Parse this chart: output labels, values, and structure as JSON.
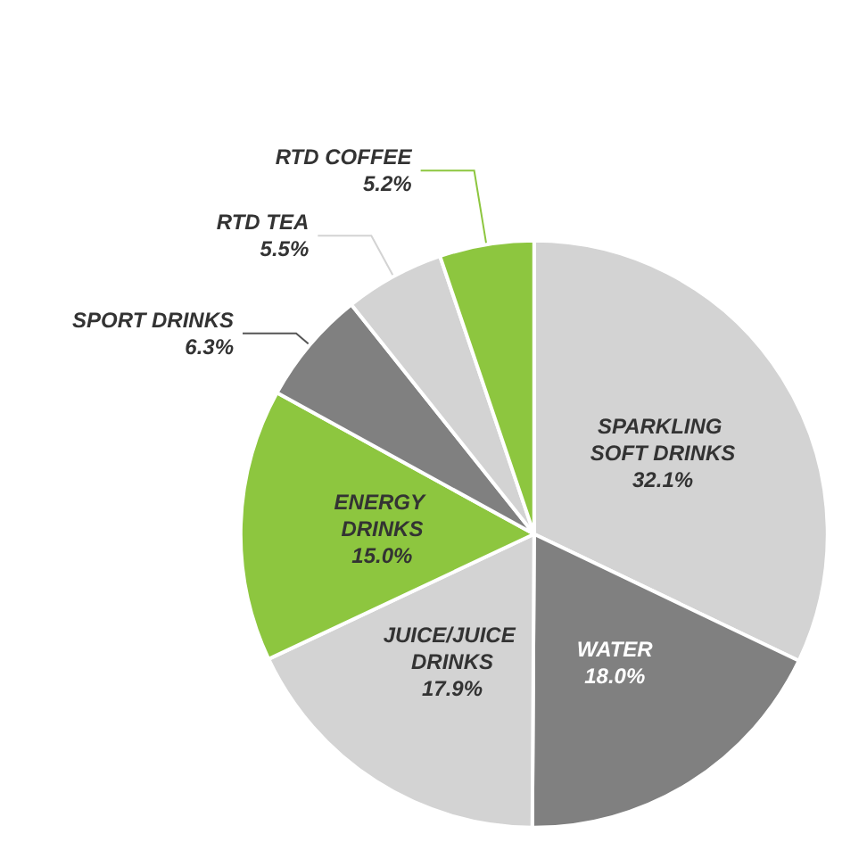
{
  "chart_data": {
    "type": "pie",
    "categories": [
      "SPARKLING SOFT DRINKS",
      "WATER",
      "JUICE/JUICE DRINKS",
      "ENERGY DRINKS",
      "SPORT DRINKS",
      "RTD TEA",
      "RTD COFFEE"
    ],
    "values": [
      32.1,
      18.0,
      17.9,
      15.0,
      6.3,
      5.5,
      5.2
    ],
    "value_labels": [
      "32.1%",
      "18.0%",
      "17.9%",
      "15.0%",
      "6.3%",
      "5.5%",
      "5.2%"
    ],
    "colors": [
      "#d3d3d3",
      "#808080",
      "#d3d3d3",
      "#8dc63f",
      "#808080",
      "#d3d3d3",
      "#8dc63f"
    ],
    "legend": false
  }
}
